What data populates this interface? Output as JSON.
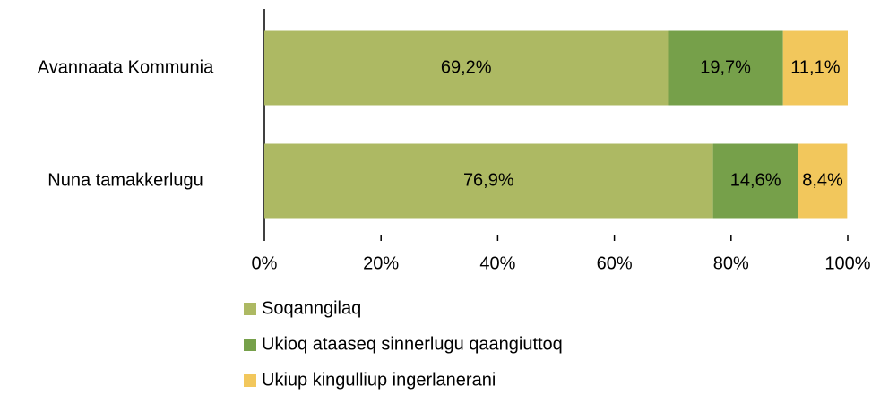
{
  "chart_data": {
    "type": "stacked_bar_horizontal",
    "categories": [
      "Avannaata Kommunia",
      "Nuna tamakkerlugu"
    ],
    "series": [
      {
        "name": "Soqanngilaq",
        "color": "#adb963",
        "values": [
          69.2,
          76.9
        ],
        "value_labels": [
          "69,2%",
          "76,9%"
        ]
      },
      {
        "name": "Ukioq ataaseq sinnerlugu qaangiuttoq",
        "color": "#76a04a",
        "values": [
          19.7,
          14.6
        ],
        "value_labels": [
          "19,7%",
          "14,6%"
        ]
      },
      {
        "name": "Ukiup kingulliup ingerlanerani",
        "color": "#f2c75c",
        "values": [
          11.1,
          8.4
        ],
        "value_labels": [
          "11,1%",
          "8,4%"
        ]
      }
    ],
    "xlim": [
      0,
      100
    ],
    "xticks": [
      {
        "value": 0,
        "label": "0%"
      },
      {
        "value": 20,
        "label": "20%"
      },
      {
        "value": 40,
        "label": "40%"
      },
      {
        "value": 60,
        "label": "60%"
      },
      {
        "value": 80,
        "label": "80%"
      },
      {
        "value": 100,
        "label": "100%"
      }
    ],
    "legend": "bottom"
  }
}
